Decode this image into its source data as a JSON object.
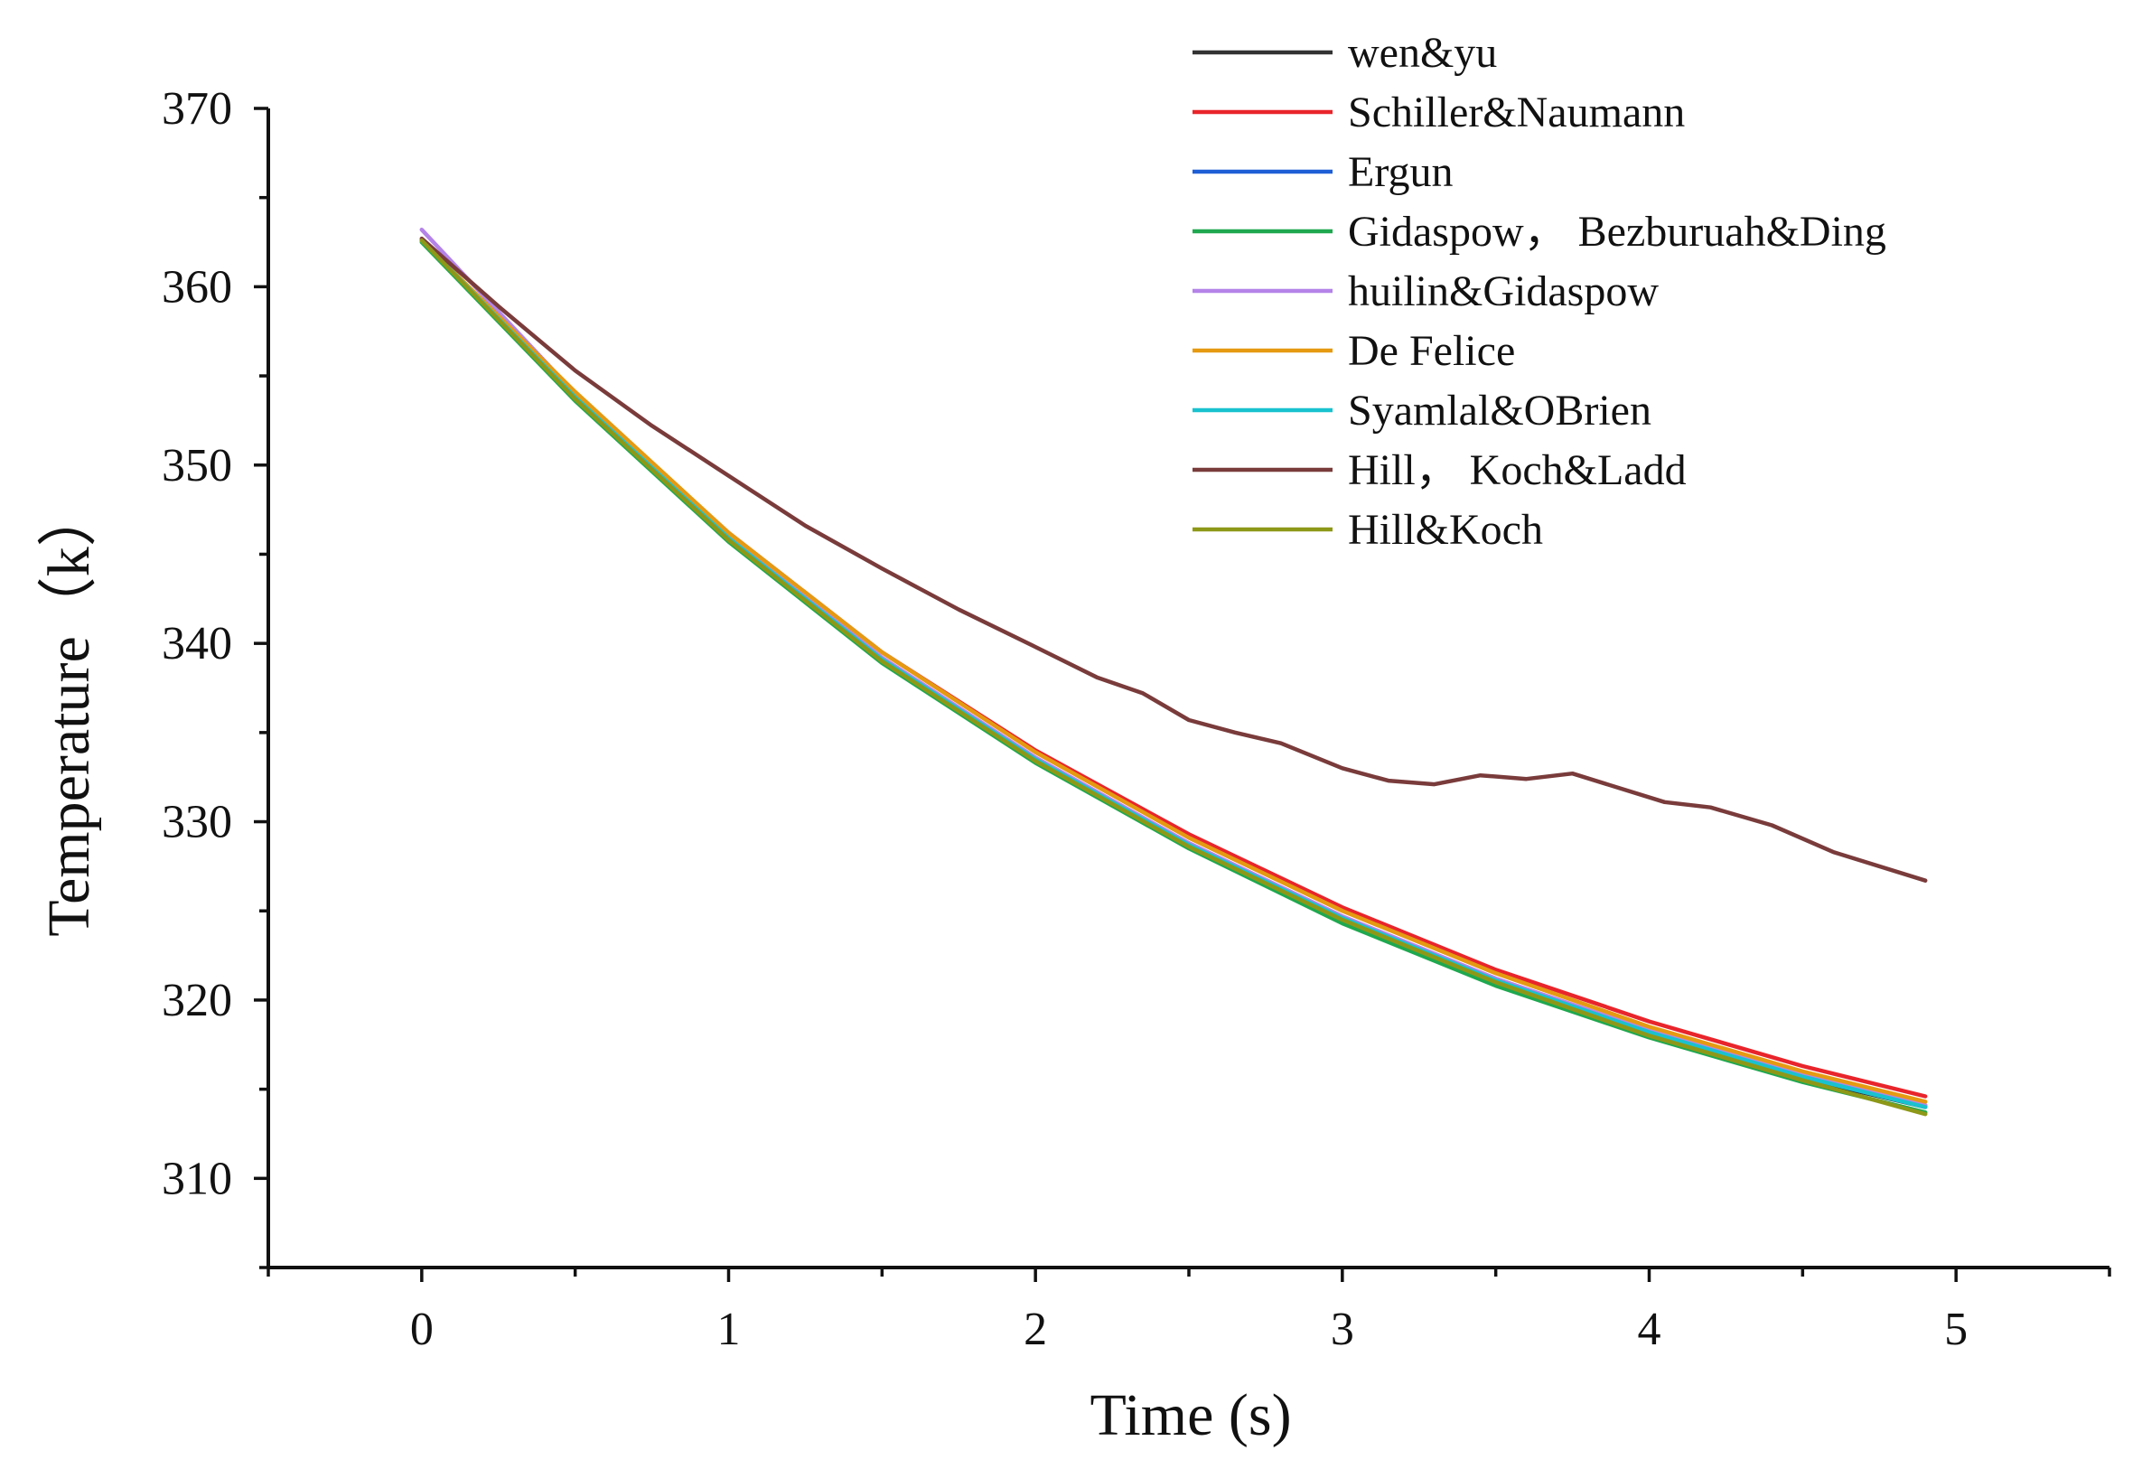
{
  "chart_data": {
    "type": "line",
    "title": "",
    "xlabel": "Time (s)",
    "ylabel": "Temperature（k）",
    "xlim": [
      -0.5,
      5.5
    ],
    "ylim": [
      305,
      370
    ],
    "xticks": [
      0,
      1,
      2,
      3,
      4,
      5
    ],
    "yticks": [
      310,
      320,
      330,
      340,
      350,
      360,
      370
    ],
    "grid": false,
    "legend_position": "top-right",
    "series": [
      {
        "name": "wen&yu",
        "color": "#333333",
        "x": [
          0,
          0.5,
          1,
          1.5,
          2,
          2.5,
          3,
          3.5,
          4,
          4.5,
          4.9
        ],
        "y": [
          362.6,
          353.8,
          345.9,
          339.0,
          333.4,
          328.6,
          324.5,
          321.0,
          318.0,
          315.6,
          314.0
        ]
      },
      {
        "name": "Schiller&Naumann",
        "color": "#e8252b",
        "x": [
          0,
          0.5,
          1,
          1.5,
          2,
          2.5,
          3,
          3.5,
          4,
          4.5,
          4.9
        ],
        "y": [
          362.6,
          354.0,
          346.2,
          339.5,
          334.0,
          329.3,
          325.2,
          321.7,
          318.8,
          316.3,
          314.6
        ]
      },
      {
        "name": "Ergun",
        "color": "#1f5fd6",
        "x": [
          0,
          0.5,
          1,
          1.5,
          2,
          2.5,
          3,
          3.5,
          4,
          4.5,
          4.9
        ],
        "y": [
          362.6,
          353.8,
          345.9,
          339.1,
          333.5,
          328.7,
          324.6,
          321.2,
          318.2,
          315.8,
          314.1
        ]
      },
      {
        "name": "Gidaspow， Bezburuah&Ding",
        "color": "#1fa84f",
        "x": [
          0,
          0.5,
          1,
          1.5,
          2,
          2.5,
          3,
          3.5,
          4,
          4.5,
          4.9
        ],
        "y": [
          362.5,
          353.6,
          345.7,
          338.9,
          333.3,
          328.5,
          324.3,
          320.8,
          317.9,
          315.4,
          313.7
        ]
      },
      {
        "name": "huilin&Gidaspow",
        "color": "#b483e8",
        "x": [
          0,
          0.5,
          1,
          1.5,
          2,
          2.5,
          3,
          3.5,
          4,
          4.5,
          4.9
        ],
        "y": [
          363.2,
          354.0,
          346.0,
          339.2,
          333.6,
          328.8,
          324.7,
          321.2,
          318.3,
          315.8,
          314.1
        ]
      },
      {
        "name": "De Felice",
        "color": "#e59a12",
        "x": [
          0,
          0.5,
          1,
          1.5,
          2,
          2.5,
          3,
          3.5,
          4,
          4.5,
          4.9
        ],
        "y": [
          362.6,
          354.1,
          346.2,
          339.5,
          333.9,
          329.1,
          325.0,
          321.5,
          318.5,
          316.0,
          314.3
        ]
      },
      {
        "name": "Syamlal&OBrien",
        "color": "#19c2cf",
        "x": [
          0,
          0.5,
          1,
          1.5,
          2,
          2.5,
          3,
          3.5,
          4,
          4.5,
          4.9
        ],
        "y": [
          362.6,
          353.8,
          345.9,
          339.1,
          333.5,
          328.7,
          324.6,
          321.1,
          318.2,
          315.7,
          314.0
        ]
      },
      {
        "name": "Hill， Koch&Ladd",
        "color": "#7a3b3b",
        "x": [
          0,
          0.25,
          0.5,
          0.75,
          1,
          1.25,
          1.5,
          1.75,
          2,
          2.2,
          2.35,
          2.5,
          2.65,
          2.8,
          3.0,
          3.15,
          3.3,
          3.45,
          3.6,
          3.75,
          3.9,
          4.05,
          4.2,
          4.4,
          4.6,
          4.9
        ],
        "y": [
          362.7,
          358.9,
          355.3,
          352.2,
          349.4,
          346.6,
          344.2,
          341.9,
          339.8,
          338.1,
          337.2,
          335.7,
          335.0,
          334.4,
          333.0,
          332.3,
          332.1,
          332.6,
          332.4,
          332.7,
          331.9,
          331.1,
          330.8,
          329.8,
          328.3,
          326.7
        ]
      },
      {
        "name": "Hill&Koch",
        "color": "#8e9818",
        "x": [
          0,
          0.5,
          1,
          1.5,
          2,
          2.5,
          3,
          3.5,
          4,
          4.5,
          4.9
        ],
        "y": [
          362.6,
          353.7,
          345.8,
          339.0,
          333.4,
          328.6,
          324.5,
          321.0,
          318.0,
          315.5,
          313.6
        ]
      }
    ]
  }
}
